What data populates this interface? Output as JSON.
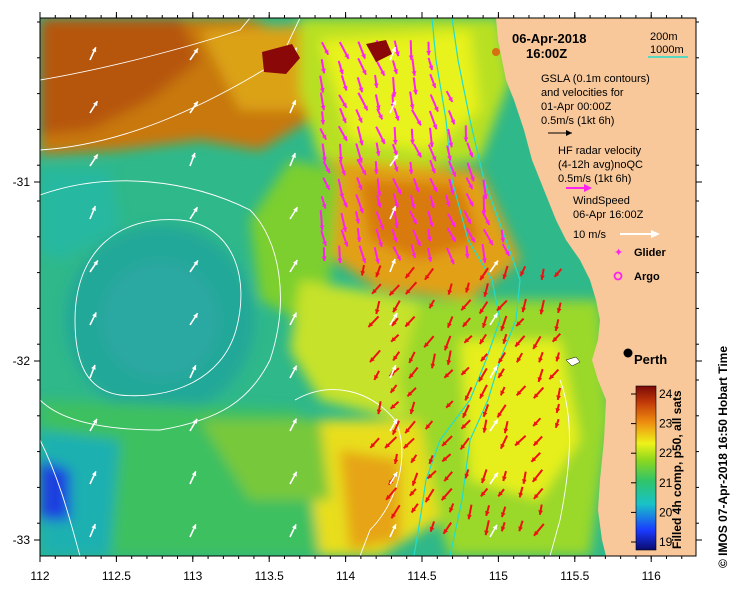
{
  "map": {
    "date": "06-Apr-2018",
    "time": "16:00Z",
    "x_ticks": [
      "112",
      "112.5",
      "113",
      "113.5",
      "114",
      "114.5",
      "115",
      "115.5",
      "116"
    ],
    "y_ticks": [
      "-31",
      "-32",
      "-33"
    ],
    "bathy_legend": {
      "contour1": "200m",
      "contour2": "1000m"
    },
    "gsla_legend": {
      "line1": "GSLA (0.1m contours)",
      "line2": "and velocities for",
      "line3": "01-Apr 00:00Z",
      "line4": "0.5m/s (1kt 6h)"
    },
    "hf_legend": {
      "line1": "HF radar velocity",
      "line2": "(4-12h avg)noQC",
      "line3": "0.5m/s (1kt 6h)"
    },
    "wind_legend": {
      "line1": "WindSpeed",
      "line2": "06-Apr 16:00Z",
      "line3": "10 m/s"
    },
    "glider_label": "Glider",
    "argo_label": "Argo",
    "city_label": "Perth",
    "colorbar": {
      "ticks": [
        "24",
        "23",
        "22",
        "21",
        "20",
        "19"
      ],
      "label": "Filled 4h comp, p50, all sats"
    },
    "credit": "© IMOS 07-Apr-2018 16:50 Hobart Time",
    "colors": {
      "land": "#f8c89a",
      "hf_arrow_north": "#ff22ee",
      "hf_arrow_south": "#ee1111",
      "wind_arrow": "#ffffff",
      "gsla_arrow": "#000000",
      "bathy_contour": "#22ddcc"
    }
  }
}
